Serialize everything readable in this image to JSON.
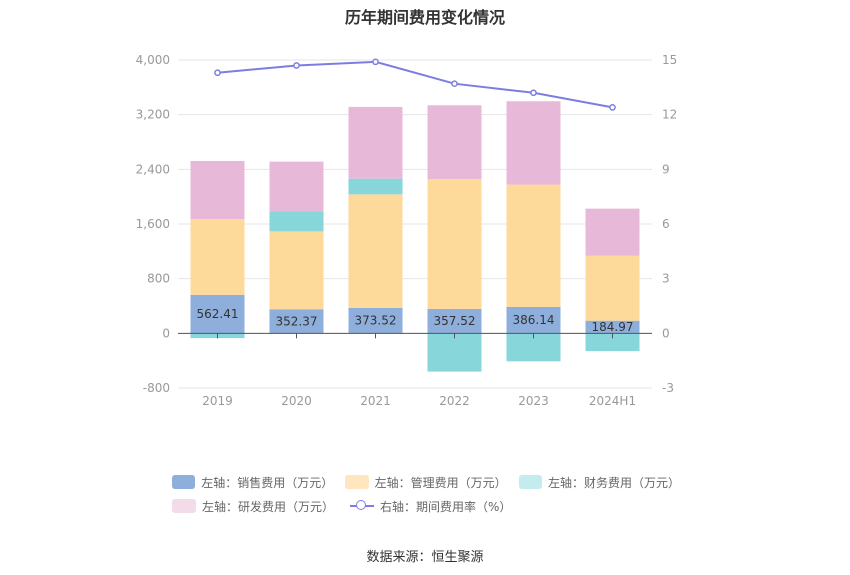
{
  "title": "历年期间费用变化情况",
  "source": "数据来源：恒生聚源",
  "legend": [
    {
      "label": "左轴：销售费用（万元）",
      "color": "#8eaedb",
      "kind": "bar"
    },
    {
      "label": "左轴：管理费用（万元）",
      "color": "#fdd99a",
      "kind": "bar"
    },
    {
      "label": "左轴：财务费用（万元）",
      "color": "#86d6da",
      "kind": "bar"
    },
    {
      "label": "左轴：研发费用（万元）",
      "color": "#e8b8d8",
      "kind": "bar"
    },
    {
      "label": "右轴：期间费用率（%）",
      "color": "#7b7ee0",
      "kind": "line"
    }
  ],
  "chart_data": {
    "type": "bar",
    "stacked": true,
    "categories": [
      "2019",
      "2020",
      "2021",
      "2022",
      "2023",
      "2024H1"
    ],
    "left_axis": {
      "ylim": [
        -800,
        4000
      ],
      "ticks": [
        "-800",
        "0",
        "800",
        "1,600",
        "2,400",
        "3,200",
        "4,000"
      ]
    },
    "right_axis": {
      "ylim": [
        -3,
        15
      ],
      "ticks": [
        "-3",
        "0",
        "3",
        "6",
        "9",
        "12",
        "15"
      ]
    },
    "series": [
      {
        "name": "左轴：销售费用（万元）",
        "color": "#8eaedb",
        "axis": "left",
        "values": [
          562.41,
          352.37,
          373.52,
          357.52,
          386.14,
          184.97
        ],
        "labels": [
          "562.41",
          "352.37",
          "373.52",
          "357.52",
          "386.14",
          "184.97"
        ]
      },
      {
        "name": "左轴：管理费用（万元）",
        "color": "#fdd99a",
        "axis": "left",
        "values": [
          1110,
          1140,
          1660,
          1900,
          1790,
          950
        ]
      },
      {
        "name": "左轴：财务费用（万元）",
        "color": "#86d6da",
        "axis": "left",
        "values": [
          -70,
          290,
          230,
          -560,
          -410,
          -260
        ]
      },
      {
        "name": "左轴：研发费用（万元）",
        "color": "#e8b8d8",
        "axis": "left",
        "values": [
          850,
          730,
          1050,
          1080,
          1220,
          690
        ]
      },
      {
        "name": "右轴：期间费用率（%）",
        "color": "#7b7ee0",
        "axis": "right",
        "type": "line",
        "values": [
          14.3,
          14.7,
          14.9,
          13.7,
          13.2,
          12.4
        ]
      }
    ],
    "grid": true,
    "legend_position": "bottom"
  }
}
